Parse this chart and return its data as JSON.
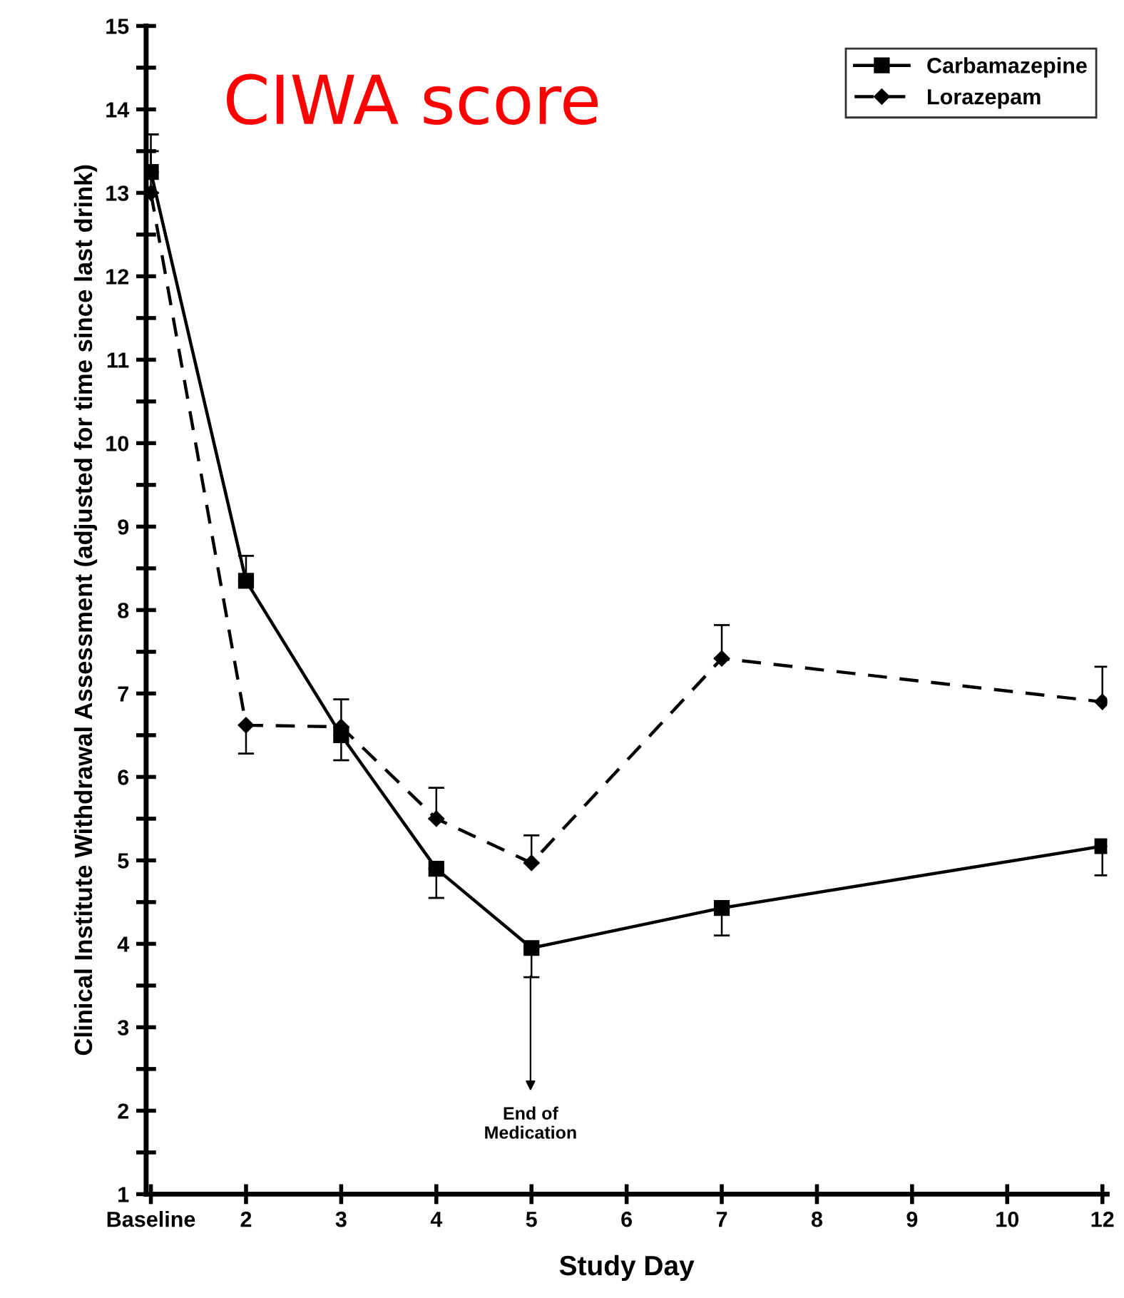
{
  "chart_data": {
    "type": "line",
    "title": "CIWA score",
    "xlabel": "Study Day",
    "ylabel": "Clinical Institute Withdrawal Assessment (adjusted for time since last drink)",
    "categories": [
      "Baseline",
      "2",
      "3",
      "4",
      "5",
      "6",
      "7",
      "8",
      "9",
      "10",
      "12"
    ],
    "ylim": [
      1,
      15
    ],
    "yticks": [
      1,
      {
        "value": 1.5,
        "label": null
      },
      2,
      {
        "value": 2.5,
        "label": null
      },
      3,
      {
        "value": 3.5,
        "label": null
      },
      4,
      {
        "value": 4.5,
        "label": null
      },
      5,
      {
        "value": 5.5,
        "label": null
      },
      6,
      {
        "value": 6.5,
        "label": null
      },
      7,
      {
        "value": 7.5,
        "label": null
      },
      8,
      {
        "value": 8.5,
        "label": null
      },
      9,
      {
        "value": 9.5,
        "label": null
      },
      10,
      {
        "value": 10.5,
        "label": null
      },
      11,
      {
        "value": 11.5,
        "label": null
      },
      12,
      {
        "value": 12.5,
        "label": null
      },
      13,
      {
        "value": 13.5,
        "label": null
      },
      14,
      {
        "value": 14.5,
        "label": null
      },
      15
    ],
    "series": [
      {
        "name": "Carbamazepine",
        "color": "#000000",
        "marker": "square",
        "line_style": "solid",
        "values": [
          13.25,
          8.35,
          6.5,
          4.9,
          3.95,
          null,
          4.43,
          null,
          null,
          null,
          5.17
        ],
        "errors": [
          [
            13.25,
            13.7
          ],
          [
            8.35,
            8.65
          ],
          [
            6.2,
            6.5
          ],
          [
            4.55,
            4.9
          ],
          [
            3.6,
            3.95
          ],
          null,
          [
            4.1,
            4.43
          ],
          null,
          null,
          null,
          [
            4.82,
            5.17
          ]
        ]
      },
      {
        "name": "Lorazepam",
        "color": "#000000",
        "marker": "diamond",
        "line_style": "dashed",
        "values": [
          13.0,
          6.62,
          6.6,
          5.5,
          4.97,
          null,
          7.42,
          null,
          null,
          null,
          6.9
        ],
        "errors": [
          [
            13.0,
            13.5
          ],
          [
            6.28,
            6.62
          ],
          [
            6.6,
            6.93
          ],
          [
            5.5,
            5.87
          ],
          [
            4.97,
            5.3
          ],
          null,
          [
            7.42,
            7.82
          ],
          null,
          null,
          null,
          [
            6.9,
            7.32
          ]
        ]
      }
    ],
    "annotations": [
      "End of\nMedication"
    ],
    "legend": "top right",
    "grid": false
  }
}
